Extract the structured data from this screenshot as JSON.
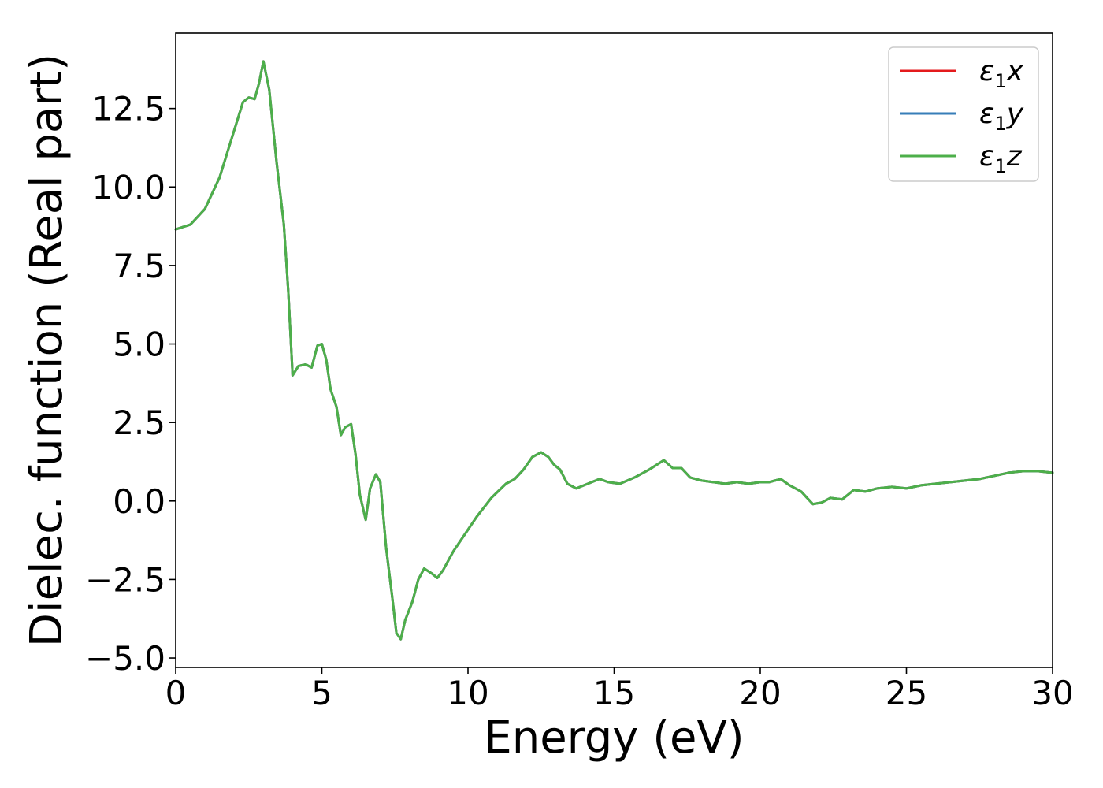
{
  "chart_data": {
    "type": "line",
    "xlabel": "Energy (eV)",
    "ylabel": "Dielec. function (Real part)",
    "xlim": [
      0,
      30
    ],
    "ylim": [
      -5.3,
      14.9
    ],
    "xticks": [
      0,
      5,
      10,
      15,
      20,
      25,
      30
    ],
    "xtick_labels": [
      "0",
      "5",
      "10",
      "15",
      "20",
      "25",
      "30"
    ],
    "yticks": [
      -5.0,
      -2.5,
      0.0,
      2.5,
      5.0,
      7.5,
      10.0,
      12.5
    ],
    "ytick_labels": [
      "−5.0",
      "−2.5",
      "0.0",
      "2.5",
      "5.0",
      "7.5",
      "10.0",
      "12.5"
    ],
    "grid": false,
    "legend_position": "top-right",
    "series": [
      {
        "name_base": "ε",
        "name_sub": "1",
        "name_suffix": "x",
        "color": "#e41a1c",
        "x": [
          0,
          0.5,
          1.0,
          1.5,
          2.0,
          2.3,
          2.5,
          2.7,
          2.85,
          3.0,
          3.2,
          3.45,
          3.7,
          3.85,
          4.0,
          4.2,
          4.45,
          4.65,
          4.85,
          5.0,
          5.15,
          5.3,
          5.5,
          5.65,
          5.8,
          6.0,
          6.15,
          6.3,
          6.5,
          6.65,
          6.85,
          7.0,
          7.2,
          7.4,
          7.55,
          7.7,
          7.85,
          8.1,
          8.3,
          8.5,
          8.75,
          8.95,
          9.15,
          9.5,
          9.9,
          10.3,
          10.8,
          11.3,
          11.6,
          11.9,
          12.2,
          12.5,
          12.75,
          12.95,
          13.15,
          13.4,
          13.7,
          14.1,
          14.5,
          14.8,
          15.2,
          15.7,
          16.2,
          16.7,
          17.0,
          17.3,
          17.6,
          18.0,
          18.4,
          18.8,
          19.2,
          19.6,
          20.0,
          20.3,
          20.7,
          21.0,
          21.4,
          21.8,
          22.1,
          22.4,
          22.8,
          23.2,
          23.6,
          24.0,
          24.5,
          25.0,
          25.5,
          26.0,
          26.5,
          27.0,
          27.5,
          28.0,
          28.5,
          29.0,
          29.5,
          29.8,
          30.0
        ],
        "y": [
          8.65,
          8.8,
          9.3,
          10.3,
          11.8,
          12.7,
          12.85,
          12.8,
          13.3,
          14.0,
          13.1,
          10.8,
          8.8,
          6.7,
          4.0,
          4.3,
          4.35,
          4.25,
          4.95,
          5.0,
          4.5,
          3.55,
          3.0,
          2.1,
          2.35,
          2.45,
          1.5,
          0.2,
          -0.6,
          0.4,
          0.85,
          0.6,
          -1.5,
          -3.0,
          -4.2,
          -4.4,
          -3.8,
          -3.2,
          -2.5,
          -2.15,
          -2.3,
          -2.45,
          -2.2,
          -1.6,
          -1.05,
          -0.5,
          0.1,
          0.55,
          0.7,
          1.0,
          1.4,
          1.55,
          1.4,
          1.15,
          1.0,
          0.55,
          0.4,
          0.55,
          0.7,
          0.6,
          0.55,
          0.75,
          1.0,
          1.3,
          1.05,
          1.05,
          0.75,
          0.65,
          0.6,
          0.55,
          0.6,
          0.55,
          0.6,
          0.6,
          0.7,
          0.5,
          0.3,
          -0.1,
          -0.05,
          0.1,
          0.05,
          0.35,
          0.3,
          0.4,
          0.45,
          0.4,
          0.5,
          0.55,
          0.6,
          0.65,
          0.7,
          0.8,
          0.9,
          0.95,
          0.95,
          0.92,
          0.9
        ]
      },
      {
        "name_base": "ε",
        "name_sub": "1",
        "name_suffix": "y",
        "color": "#377eb8",
        "x": [
          0,
          0.5,
          1.0,
          1.5,
          2.0,
          2.3,
          2.5,
          2.7,
          2.85,
          3.0,
          3.2,
          3.45,
          3.7,
          3.85,
          4.0,
          4.2,
          4.45,
          4.65,
          4.85,
          5.0,
          5.15,
          5.3,
          5.5,
          5.65,
          5.8,
          6.0,
          6.15,
          6.3,
          6.5,
          6.65,
          6.85,
          7.0,
          7.2,
          7.4,
          7.55,
          7.7,
          7.85,
          8.1,
          8.3,
          8.5,
          8.75,
          8.95,
          9.15,
          9.5,
          9.9,
          10.3,
          10.8,
          11.3,
          11.6,
          11.9,
          12.2,
          12.5,
          12.75,
          12.95,
          13.15,
          13.4,
          13.7,
          14.1,
          14.5,
          14.8,
          15.2,
          15.7,
          16.2,
          16.7,
          17.0,
          17.3,
          17.6,
          18.0,
          18.4,
          18.8,
          19.2,
          19.6,
          20.0,
          20.3,
          20.7,
          21.0,
          21.4,
          21.8,
          22.1,
          22.4,
          22.8,
          23.2,
          23.6,
          24.0,
          24.5,
          25.0,
          25.5,
          26.0,
          26.5,
          27.0,
          27.5,
          28.0,
          28.5,
          29.0,
          29.5,
          29.8,
          30.0
        ],
        "y": [
          8.65,
          8.8,
          9.3,
          10.3,
          11.8,
          12.7,
          12.85,
          12.8,
          13.3,
          14.0,
          13.1,
          10.8,
          8.8,
          6.7,
          4.0,
          4.3,
          4.35,
          4.25,
          4.95,
          5.0,
          4.5,
          3.55,
          3.0,
          2.1,
          2.35,
          2.45,
          1.5,
          0.2,
          -0.6,
          0.4,
          0.85,
          0.6,
          -1.5,
          -3.0,
          -4.2,
          -4.4,
          -3.8,
          -3.2,
          -2.5,
          -2.15,
          -2.3,
          -2.45,
          -2.2,
          -1.6,
          -1.05,
          -0.5,
          0.1,
          0.55,
          0.7,
          1.0,
          1.4,
          1.55,
          1.4,
          1.15,
          1.0,
          0.55,
          0.4,
          0.55,
          0.7,
          0.6,
          0.55,
          0.75,
          1.0,
          1.3,
          1.05,
          1.05,
          0.75,
          0.65,
          0.6,
          0.55,
          0.6,
          0.55,
          0.6,
          0.6,
          0.7,
          0.5,
          0.3,
          -0.1,
          -0.05,
          0.1,
          0.05,
          0.35,
          0.3,
          0.4,
          0.45,
          0.4,
          0.5,
          0.55,
          0.6,
          0.65,
          0.7,
          0.8,
          0.9,
          0.95,
          0.95,
          0.92,
          0.9
        ]
      },
      {
        "name_base": "ε",
        "name_sub": "1",
        "name_suffix": "z",
        "color": "#4daf4a",
        "x": [
          0,
          0.5,
          1.0,
          1.5,
          2.0,
          2.3,
          2.5,
          2.7,
          2.85,
          3.0,
          3.2,
          3.45,
          3.7,
          3.85,
          4.0,
          4.2,
          4.45,
          4.65,
          4.85,
          5.0,
          5.15,
          5.3,
          5.5,
          5.65,
          5.8,
          6.0,
          6.15,
          6.3,
          6.5,
          6.65,
          6.85,
          7.0,
          7.2,
          7.4,
          7.55,
          7.7,
          7.85,
          8.1,
          8.3,
          8.5,
          8.75,
          8.95,
          9.15,
          9.5,
          9.9,
          10.3,
          10.8,
          11.3,
          11.6,
          11.9,
          12.2,
          12.5,
          12.75,
          12.95,
          13.15,
          13.4,
          13.7,
          14.1,
          14.5,
          14.8,
          15.2,
          15.7,
          16.2,
          16.7,
          17.0,
          17.3,
          17.6,
          18.0,
          18.4,
          18.8,
          19.2,
          19.6,
          20.0,
          20.3,
          20.7,
          21.0,
          21.4,
          21.8,
          22.1,
          22.4,
          22.8,
          23.2,
          23.6,
          24.0,
          24.5,
          25.0,
          25.5,
          26.0,
          26.5,
          27.0,
          27.5,
          28.0,
          28.5,
          29.0,
          29.5,
          29.8,
          30.0
        ],
        "y": [
          8.65,
          8.8,
          9.3,
          10.3,
          11.8,
          12.7,
          12.85,
          12.8,
          13.3,
          14.0,
          13.1,
          10.8,
          8.8,
          6.7,
          4.0,
          4.3,
          4.35,
          4.25,
          4.95,
          5.0,
          4.5,
          3.55,
          3.0,
          2.1,
          2.35,
          2.45,
          1.5,
          0.2,
          -0.6,
          0.4,
          0.85,
          0.6,
          -1.5,
          -3.0,
          -4.2,
          -4.4,
          -3.8,
          -3.2,
          -2.5,
          -2.15,
          -2.3,
          -2.45,
          -2.2,
          -1.6,
          -1.05,
          -0.5,
          0.1,
          0.55,
          0.7,
          1.0,
          1.4,
          1.55,
          1.4,
          1.15,
          1.0,
          0.55,
          0.4,
          0.55,
          0.7,
          0.6,
          0.55,
          0.75,
          1.0,
          1.3,
          1.05,
          1.05,
          0.75,
          0.65,
          0.6,
          0.55,
          0.6,
          0.55,
          0.6,
          0.6,
          0.7,
          0.5,
          0.3,
          -0.1,
          -0.05,
          0.1,
          0.05,
          0.35,
          0.3,
          0.4,
          0.45,
          0.4,
          0.5,
          0.55,
          0.6,
          0.65,
          0.7,
          0.8,
          0.9,
          0.95,
          0.95,
          0.92,
          0.9
        ]
      }
    ]
  }
}
